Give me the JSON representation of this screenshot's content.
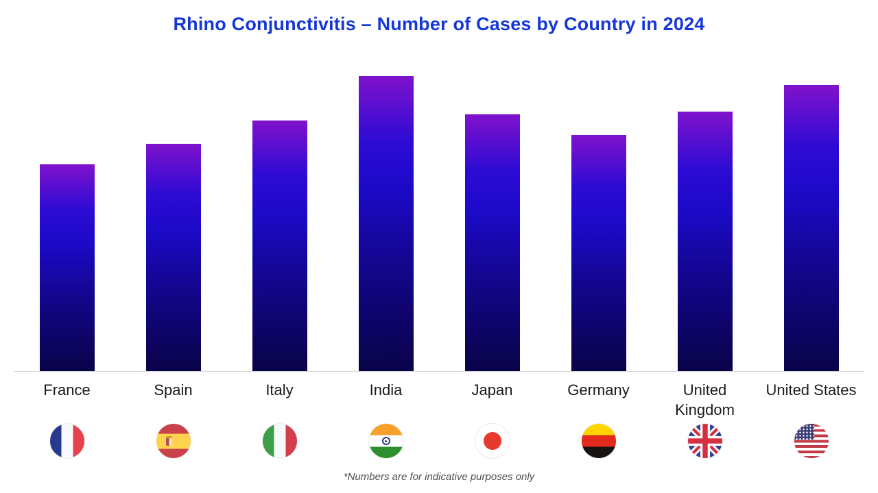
{
  "title": {
    "text": "Rhino Conjunctivitis – Number of Cases by Country in 2024",
    "color": "#1537d6"
  },
  "footnote": "*Numbers are for indicative purposes only",
  "chart_data": {
    "type": "bar",
    "title": "Rhino Conjunctivitis – Number of Cases by Country in 2024",
    "categories": [
      "France",
      "Spain",
      "Italy",
      "India",
      "Japan",
      "Germany",
      "United Kingdom",
      "United States"
    ],
    "values": [
      70,
      77,
      85,
      100,
      87,
      80,
      88,
      97
    ],
    "value_notes": "No numeric axis shown; values estimated from bar heights relative to tallest bar (India = 100). Footnote states numbers are indicative only.",
    "xlabel": "",
    "ylabel": "",
    "ylim": [
      0,
      100
    ],
    "grid": false,
    "legend": null,
    "axis_line_color": "#d8d8d8",
    "bar_gradient": [
      "#8012cc",
      "#1c0ac8",
      "#090348"
    ],
    "flags": [
      "france",
      "spain",
      "italy",
      "india",
      "japan",
      "germany",
      "united-kingdom",
      "united-states"
    ],
    "flag_icon_names": [
      "flag-france-icon",
      "flag-spain-icon",
      "flag-italy-icon",
      "flag-india-icon",
      "flag-japan-icon",
      "flag-germany-icon",
      "flag-united-kingdom-icon",
      "flag-united-states-icon"
    ]
  }
}
